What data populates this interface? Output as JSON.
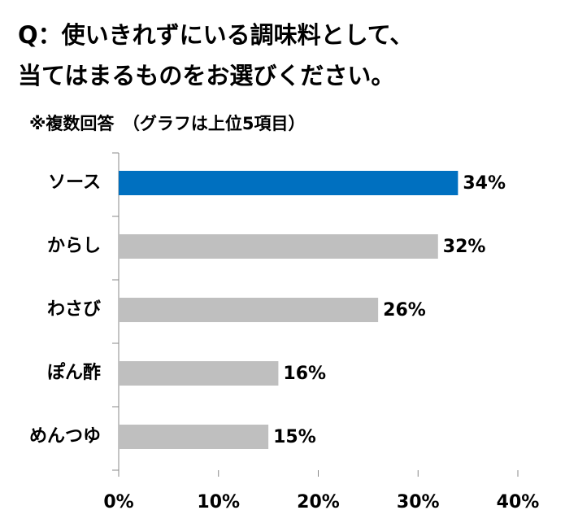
{
  "chart_data": {
    "type": "bar",
    "orientation": "horizontal",
    "title": [
      "Q：使いきれずにいる調味料として、",
      "当てはまるものをお選びください。"
    ],
    "subtitle": "※複数回答　（グラフは上位5項目）",
    "categories": [
      "ソース",
      "からし",
      "わさび",
      "ぽん酢",
      "めんつゆ"
    ],
    "values": [
      34,
      32,
      26,
      16,
      15
    ],
    "value_labels": [
      "34%",
      "32%",
      "26%",
      "16%",
      "15%"
    ],
    "colors": [
      "#0070c0",
      "#bfbfbf",
      "#bfbfbf",
      "#bfbfbf",
      "#bfbfbf"
    ],
    "xlim": [
      0,
      40
    ],
    "xticks": [
      {
        "value": 0,
        "label": "0%"
      },
      {
        "value": 10,
        "label": "10%"
      },
      {
        "value": 20,
        "label": "20%"
      },
      {
        "value": 30,
        "label": "30%"
      },
      {
        "value": 40,
        "label": "40%"
      }
    ],
    "grid": false
  }
}
